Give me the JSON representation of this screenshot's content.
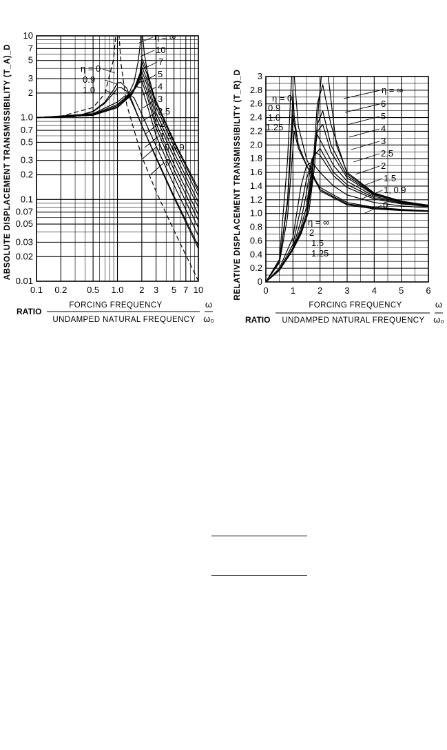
{
  "chart_data": [
    {
      "type": "line",
      "ylabel": "ABSOLUTE DISPLACEMENT TRANSMISSIBILITY (T_A)_D",
      "xlabel_prefix": "RATIO",
      "xlabel_numerator": "FORCING FREQUENCY",
      "xlabel_denominator": "UNDAMPED NATURAL FREQUENCY",
      "xlabel_ratio_numerator": "ω",
      "xlabel_ratio_denominator": "ω₀",
      "xscale": "log",
      "yscale": "log",
      "xlim": [
        0.1,
        10
      ],
      "ylim": [
        0.01,
        10
      ],
      "xticks": [
        0.1,
        0.2,
        0.5,
        1.0,
        2,
        3,
        5,
        7,
        10
      ],
      "xtick_labels": [
        "0.1",
        "0.2",
        "0.5",
        "1.0",
        "2",
        "3",
        "5",
        "7",
        "10"
      ],
      "yticks": [
        0.01,
        0.02,
        0.03,
        0.05,
        0.07,
        0.1,
        0.2,
        0.3,
        0.5,
        0.7,
        1.0,
        2,
        3,
        5,
        7,
        10
      ],
      "ytick_labels": [
        "0.01",
        "0.02",
        "0.03",
        "0.05",
        "0.07",
        "0.1",
        "0.2",
        "0.3",
        "0.5",
        "0.7",
        "1.0",
        "2",
        "3",
        "5",
        "7",
        "10"
      ],
      "grid": true,
      "series_labels_right": [
        "η = ∞",
        "10",
        "7",
        "5",
        "4",
        "3",
        "2.5",
        "2",
        "1.5",
        "1.0,0.9",
        "0"
      ],
      "series_labels_left": [
        "η = 0",
        "0.9",
        "1.0"
      ],
      "series": [
        {
          "eta": "0",
          "style": "dashed",
          "x": [
            0.1,
            0.2,
            0.5,
            0.7,
            0.9,
            0.95,
            1.05,
            1.1,
            1.3,
            2,
            3,
            5,
            10
          ],
          "y": [
            1.01,
            1.04,
            1.33,
            1.96,
            5.26,
            10,
            10,
            4.76,
            1.45,
            0.333,
            0.125,
            0.0417,
            0.0101
          ]
        },
        {
          "eta": "0.9",
          "style": "solid",
          "x": [
            0.1,
            0.3,
            0.5,
            0.7,
            0.9,
            1.0,
            1.1,
            1.3,
            1.6,
            2,
            3,
            5,
            10
          ],
          "y": [
            1.0,
            1.03,
            1.2,
            1.55,
            2.2,
            2.65,
            2.7,
            2.3,
            1.4,
            0.8,
            0.32,
            0.105,
            0.025
          ]
        },
        {
          "eta": "1.0",
          "style": "solid",
          "x": [
            0.1,
            0.3,
            0.5,
            0.7,
            0.9,
            1.0,
            1.1,
            1.3,
            1.6,
            2,
            3,
            5,
            10
          ],
          "y": [
            1.0,
            1.03,
            1.18,
            1.5,
            2.0,
            2.3,
            2.35,
            2.1,
            1.35,
            0.8,
            0.33,
            0.11,
            0.027
          ]
        },
        {
          "eta": "1.5",
          "style": "solid",
          "x": [
            0.1,
            0.5,
            1.0,
            1.2,
            1.4,
            1.6,
            2,
            3,
            5,
            10
          ],
          "y": [
            1.0,
            1.12,
            1.55,
            1.8,
            1.9,
            1.75,
            1.1,
            0.45,
            0.15,
            0.036
          ]
        },
        {
          "eta": "2",
          "style": "solid",
          "x": [
            0.1,
            0.5,
            1.0,
            1.4,
            1.7,
            2.0,
            2.3,
            3,
            5,
            10
          ],
          "y": [
            1.0,
            1.1,
            1.45,
            1.95,
            2.4,
            2.3,
            1.5,
            0.6,
            0.19,
            0.045
          ]
        },
        {
          "eta": "2.5",
          "style": "solid",
          "x": [
            0.1,
            0.5,
            1.0,
            1.5,
            1.8,
            2.0,
            2.3,
            3,
            5,
            10
          ],
          "y": [
            1.0,
            1.08,
            1.4,
            2.0,
            2.6,
            2.8,
            1.9,
            0.75,
            0.23,
            0.055
          ]
        },
        {
          "eta": "3",
          "style": "solid",
          "x": [
            0.1,
            0.5,
            1.0,
            1.5,
            1.9,
            2.0,
            2.3,
            3,
            5,
            10
          ],
          "y": [
            1.0,
            1.07,
            1.35,
            1.95,
            2.8,
            3.2,
            2.2,
            0.85,
            0.27,
            0.065
          ]
        },
        {
          "eta": "4",
          "style": "solid",
          "x": [
            0.1,
            0.5,
            1.0,
            1.5,
            1.9,
            2.0,
            2.3,
            3,
            5,
            10
          ],
          "y": [
            1.0,
            1.07,
            1.35,
            1.9,
            3.0,
            3.7,
            2.6,
            1.0,
            0.33,
            0.08
          ]
        },
        {
          "eta": "5",
          "style": "solid",
          "x": [
            0.1,
            0.5,
            1.0,
            1.5,
            1.9,
            2.0,
            2.3,
            3,
            5,
            10
          ],
          "y": [
            1.0,
            1.07,
            1.34,
            1.9,
            3.1,
            4.2,
            3.0,
            1.15,
            0.38,
            0.092
          ]
        },
        {
          "eta": "7",
          "style": "solid",
          "x": [
            0.1,
            0.5,
            1.0,
            1.5,
            1.9,
            2.0,
            2.3,
            3,
            5,
            10
          ],
          "y": [
            1.0,
            1.07,
            1.34,
            1.9,
            3.3,
            4.8,
            3.5,
            1.35,
            0.45,
            0.11
          ]
        },
        {
          "eta": "10",
          "style": "solid",
          "x": [
            0.1,
            0.5,
            1.0,
            1.5,
            1.9,
            2.0,
            2.3,
            3,
            5,
            10
          ],
          "y": [
            1.0,
            1.07,
            1.33,
            1.9,
            3.5,
            5.3,
            3.9,
            1.5,
            0.5,
            0.125
          ]
        },
        {
          "eta": "∞",
          "style": "solid",
          "x": [
            0.1,
            0.5,
            1.0,
            1.3,
            1.6,
            1.8,
            1.9,
            1.95,
            2.05,
            2.15,
            2.5,
            3,
            5,
            10
          ],
          "y": [
            1.0,
            1.07,
            1.33,
            1.73,
            2.7,
            4.8,
            7.5,
            10,
            10,
            6.0,
            2.5,
            1.6,
            0.52,
            0.135
          ]
        }
      ]
    },
    {
      "type": "line",
      "ylabel": "RELATIVE DISPLACEMENT TRANSMISSIBILITY (T_R)_D",
      "xlabel_prefix": "RATIO",
      "xlabel_numerator": "FORCING FREQUENCY",
      "xlabel_denominator": "UNDAMPED NATURAL FREQUENCY",
      "xlabel_ratio_numerator": "ω",
      "xlabel_ratio_denominator": "ω₀",
      "xscale": "linear",
      "yscale": "linear",
      "xlim": [
        0,
        6
      ],
      "ylim": [
        0,
        3
      ],
      "xticks": [
        0,
        1,
        2,
        3,
        4,
        5,
        6
      ],
      "xtick_labels": [
        "0",
        "1",
        "2",
        "3",
        "4",
        "5",
        "6"
      ],
      "yticks": [
        0,
        0.2,
        0.4,
        0.6,
        0.8,
        1.0,
        1.2,
        1.4,
        1.6,
        1.8,
        2.0,
        2.2,
        2.4,
        2.6,
        2.8,
        3
      ],
      "ytick_labels": [
        "0",
        "0.2",
        "0.4",
        "0.6",
        "0.8",
        "1.0",
        "1.2",
        "1.4",
        "1.6",
        "1.8",
        "2.0",
        "2.2",
        "2.4",
        "2.6",
        "2.8",
        "3"
      ],
      "grid": true,
      "series_labels_right": [
        "η = ∞",
        "6",
        "5",
        "4",
        "3",
        "2.5",
        "2",
        "1.5",
        "1, 0.9",
        "0"
      ],
      "series_labels_left": [
        "η = 0",
        "0.9",
        "1.0",
        "1.25"
      ],
      "series_labels_lower": [
        "η = ∞",
        "2",
        "1.5",
        "1.25"
      ],
      "series": [
        {
          "eta": "0",
          "style": "solid",
          "x": [
            0,
            0.5,
            0.8,
            0.95,
            1.0,
            1.05,
            1.2,
            1.5,
            2,
            3,
            4,
            5,
            6
          ],
          "y": [
            0,
            0.33,
            1.78,
            3.0,
            3.0,
            3.0,
            2.27,
            1.8,
            1.33,
            1.125,
            1.067,
            1.042,
            1.03
          ]
        },
        {
          "eta": "0.9",
          "style": "solid",
          "x": [
            0,
            0.5,
            0.8,
            0.95,
            1.0,
            1.05,
            1.2,
            1.5,
            2,
            3,
            4,
            5,
            6
          ],
          "y": [
            0,
            0.3,
            1.2,
            2.3,
            2.8,
            2.4,
            2.0,
            1.7,
            1.35,
            1.14,
            1.08,
            1.05,
            1.04
          ]
        },
        {
          "eta": "1.0",
          "style": "solid",
          "x": [
            0,
            0.5,
            0.8,
            0.95,
            1.0,
            1.05,
            1.2,
            1.5,
            2,
            3,
            4,
            5,
            6
          ],
          "y": [
            0,
            0.3,
            1.15,
            2.1,
            2.45,
            2.3,
            2.0,
            1.7,
            1.35,
            1.14,
            1.08,
            1.05,
            1.04
          ]
        },
        {
          "eta": "1.25",
          "style": "solid",
          "x": [
            0,
            0.5,
            0.8,
            0.95,
            1.05,
            1.2,
            1.5,
            2,
            3,
            4,
            5,
            6
          ],
          "y": [
            0,
            0.28,
            0.95,
            1.7,
            2.2,
            1.95,
            1.7,
            1.38,
            1.16,
            1.09,
            1.06,
            1.04
          ]
        },
        {
          "eta": "1.5",
          "style": "solid",
          "x": [
            0,
            0.5,
            1.0,
            1.3,
            1.5,
            1.7,
            2,
            2.5,
            3,
            4,
            5,
            6
          ],
          "y": [
            0,
            0.2,
            0.65,
            1.4,
            1.7,
            1.75,
            1.6,
            1.4,
            1.27,
            1.16,
            1.11,
            1.08
          ]
        },
        {
          "eta": "2",
          "style": "solid",
          "x": [
            0,
            0.5,
            1.0,
            1.3,
            1.5,
            1.8,
            2,
            2.5,
            3,
            4,
            5,
            6
          ],
          "y": [
            0,
            0.18,
            0.55,
            1.1,
            1.5,
            1.9,
            1.85,
            1.55,
            1.38,
            1.21,
            1.14,
            1.1
          ]
        },
        {
          "eta": "2.5",
          "style": "solid",
          "x": [
            0,
            0.5,
            1.0,
            1.3,
            1.5,
            1.7,
            2,
            2.5,
            3,
            4,
            5,
            6
          ],
          "y": [
            0,
            0.17,
            0.5,
            0.9,
            1.3,
            1.8,
            1.95,
            1.6,
            1.42,
            1.23,
            1.15,
            1.11
          ]
        },
        {
          "eta": "3",
          "style": "solid",
          "x": [
            0,
            0.5,
            1.0,
            1.3,
            1.5,
            1.7,
            1.9,
            2.1,
            2.5,
            3,
            4,
            5,
            6
          ],
          "y": [
            0,
            0.17,
            0.48,
            0.8,
            1.1,
            1.7,
            2.15,
            2.0,
            1.7,
            1.47,
            1.25,
            1.16,
            1.12
          ]
        },
        {
          "eta": "4",
          "style": "solid",
          "x": [
            0,
            0.5,
            1.0,
            1.3,
            1.5,
            1.7,
            1.9,
            2.1,
            2.4,
            3,
            4,
            5,
            6
          ],
          "y": [
            0,
            0.17,
            0.47,
            0.75,
            1.0,
            1.6,
            2.2,
            2.3,
            1.9,
            1.52,
            1.27,
            1.17,
            1.12
          ]
        },
        {
          "eta": "5",
          "style": "solid",
          "x": [
            0,
            0.5,
            1.0,
            1.3,
            1.5,
            1.7,
            1.9,
            2.1,
            2.4,
            3,
            4,
            5,
            6
          ],
          "y": [
            0,
            0.17,
            0.47,
            0.73,
            0.95,
            1.5,
            2.3,
            2.5,
            2.0,
            1.55,
            1.28,
            1.17,
            1.12
          ]
        },
        {
          "eta": "6",
          "style": "solid",
          "x": [
            0,
            0.5,
            1.0,
            1.3,
            1.5,
            1.7,
            1.9,
            2.1,
            2.4,
            3,
            4,
            5,
            6
          ],
          "y": [
            0,
            0.17,
            0.47,
            0.72,
            0.93,
            1.45,
            2.6,
            2.88,
            2.3,
            1.58,
            1.29,
            1.18,
            1.12
          ]
        },
        {
          "eta": "∞",
          "style": "solid",
          "x": [
            0,
            0.5,
            1.0,
            1.3,
            1.6,
            1.8,
            1.95,
            2.05,
            2.3,
            2.6,
            3,
            4,
            5,
            6
          ],
          "y": [
            0,
            0.17,
            0.47,
            0.7,
            1.05,
            1.7,
            2.6,
            3.0,
            3.0,
            2.0,
            1.6,
            1.3,
            1.18,
            1.12
          ]
        }
      ]
    }
  ]
}
